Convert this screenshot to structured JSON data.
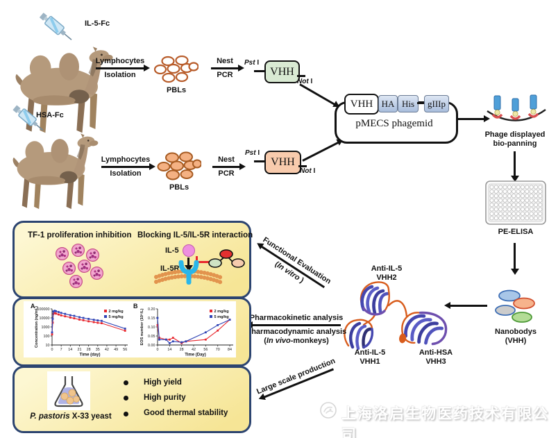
{
  "tracks": [
    {
      "antigen": "IL-5-Fc",
      "iso_top": "Lymphocytes",
      "iso_bottom": "Isolation",
      "cells": "PBLs",
      "pcr_top": "Nest",
      "pcr_bottom": "PCR",
      "enz_left_i": "Pst",
      "enz_left_r": " I",
      "gene": "VHH",
      "enz_right_i": "Not",
      "enz_right_r": " I"
    },
    {
      "antigen": "HSA-Fc",
      "iso_top": "Lymphocytes",
      "iso_bottom": "Isolation",
      "cells": "PBLs",
      "pcr_top": "Nest",
      "pcr_bottom": "PCR",
      "enz_left_i": "Pst",
      "enz_left_r": " I",
      "gene": "VHH",
      "enz_right_i": "Not",
      "enz_right_r": " I"
    }
  ],
  "phagemid": {
    "name": "pMECS phagemid",
    "cassette": {
      "vhh": "VHH",
      "ha": "HA",
      "his": "His",
      "g3p": "gIIIp"
    }
  },
  "panning": {
    "line1": "Phage displayed",
    "line2": "bio-panning"
  },
  "elisa": "PE-ELISA",
  "nanobodies": {
    "line1": "Nanobodys",
    "line2": "(VHH)"
  },
  "structures": {
    "vhh2_l1": "Anti-IL-5",
    "vhh2_l2": "VHH2",
    "vhh1_l1": "Anti-IL-5",
    "vhh1_l2": "VHH1",
    "vhh3_l1": "Anti-HSA",
    "vhh3_l2": "VHH3"
  },
  "process": {
    "func_l1": "Functional Evaluation",
    "func_l2_pre": "(",
    "func_l2_i": "In vitro",
    "func_l2_post": " )",
    "pk": "Pharmacokinetic analysis",
    "pd": "Pharmacodynamic analysis",
    "pd2_pre": "(",
    "pd2_i": "In vivo",
    "pd2_post": "-monkeys)",
    "prod": "Large scale production"
  },
  "panel_functional": {
    "title_left": "TF-1 proliferation inhibition",
    "title_right": "Blocking IL-5/IL-5R interaction",
    "il5": "IL-5",
    "il5r": "IL-5R"
  },
  "panel_pk": {
    "label_a": "A",
    "label_b": "B"
  },
  "panel_prod": {
    "flask_i": "P. pastoris",
    "flask_r": " X-33 yeast",
    "bullets": [
      "High yield",
      "High purity",
      "Good thermal stability"
    ]
  },
  "watermark": "上海洛启生物医药技术有限公司",
  "colors": {
    "series_red": "#e8262d",
    "series_blue": "#2f43b5",
    "panel_border": "#2c4470",
    "vhh_green": "#d9ead3",
    "vhh_orange": "#f8cbad",
    "receptor_blue": "#29b6ea",
    "il5_pink": "#ee8fdf",
    "membrane_orange": "#e2944e"
  },
  "chart_data": [
    {
      "panel": "A",
      "type": "line",
      "x_label": "Time (day)",
      "y_label": "Concentration (ng/mL)",
      "y_scale": "log",
      "xlim": [
        0,
        58
      ],
      "ylim": [
        10,
        100000
      ],
      "x_ticks": [
        0,
        7,
        14,
        21,
        28,
        35,
        42,
        49,
        56
      ],
      "y_ticks": [
        10,
        100,
        1000,
        10000,
        100000
      ],
      "legend_position": "top-right",
      "grid": false,
      "series": [
        {
          "name": "2 mg/kg",
          "color": "#e8262d",
          "x": [
            0,
            0.5,
            1,
            2,
            3,
            5,
            7,
            10,
            14,
            17,
            21,
            24,
            28,
            32,
            35,
            38,
            56
          ],
          "y": [
            150,
            3000,
            28000,
            35000,
            30000,
            24000,
            19000,
            15000,
            11000,
            9000,
            6500,
            5500,
            4200,
            3400,
            2900,
            2600,
            380
          ]
        },
        {
          "name": "5 mg/kg",
          "color": "#2f43b5",
          "x": [
            0,
            0.5,
            1,
            2,
            3,
            5,
            7,
            10,
            14,
            17,
            21,
            24,
            28,
            32,
            35,
            38,
            56
          ],
          "y": [
            250,
            8000,
            52000,
            62000,
            55000,
            45000,
            36000,
            28000,
            20000,
            17000,
            12000,
            10000,
            7800,
            6200,
            5300,
            4700,
            650
          ]
        }
      ]
    },
    {
      "panel": "B",
      "type": "line",
      "x_label": "Time (Day)",
      "y_label": "EOS number (10⁹/L)",
      "y_scale": "linear",
      "xlim": [
        0,
        88
      ],
      "ylim": [
        0,
        0.2
      ],
      "x_ticks": [
        0,
        14,
        28,
        42,
        56,
        70,
        84
      ],
      "y_ticks": [
        0,
        0.05,
        0.1,
        0.15,
        0.2
      ],
      "legend_position": "top-right",
      "grid": false,
      "series": [
        {
          "name": "2 mg/kg",
          "color": "#e8262d",
          "x": [
            0,
            2,
            10,
            14,
            18,
            28,
            33,
            56,
            70,
            84
          ],
          "y": [
            0.11,
            0.04,
            0.03,
            0.03,
            0.04,
            0.01,
            0.02,
            0.03,
            0.08,
            0.14
          ]
        },
        {
          "name": "5 mg/kg",
          "color": "#2f43b5",
          "x": [
            0,
            2,
            10,
            14,
            18,
            28,
            33,
            56,
            70,
            84
          ],
          "y": [
            0.15,
            0.03,
            0.03,
            0.01,
            0.02,
            0.015,
            0.02,
            0.07,
            0.11,
            0.14
          ]
        }
      ]
    }
  ]
}
